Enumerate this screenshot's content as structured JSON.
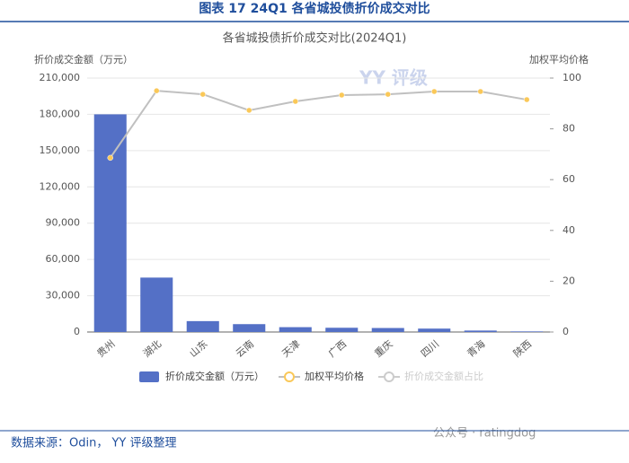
{
  "header": {
    "title": "图表 17 24Q1 各省城投债折价成交对比"
  },
  "chart_data": {
    "type": "bar_line",
    "title": "各省城投债折价成交对比(2024Q1)",
    "y_label": "折价成交金额（万元）",
    "y2_label": "加权平均价格",
    "categories": [
      "贵州",
      "湖北",
      "山东",
      "云南",
      "天津",
      "广西",
      "重庆",
      "四川",
      "青海",
      "陕西"
    ],
    "series": [
      {
        "name": "折价成交金额（万元）",
        "type": "bar",
        "color": "#5470c6",
        "values": [
          180000,
          45000,
          9000,
          6500,
          4000,
          3500,
          3300,
          2800,
          1200,
          500
        ]
      },
      {
        "name": "加权平均价格",
        "type": "line",
        "axis": "y2",
        "color": "#c0c0c0",
        "marker_color": "#fac858",
        "values": [
          68.6,
          95,
          93.6,
          87.3,
          90.8,
          93.3,
          93.6,
          94.7,
          94.7,
          91.5
        ]
      },
      {
        "name": "折价成交金额占比",
        "type": "line",
        "axis": "y2",
        "color": "#cccccc",
        "hidden": true,
        "values": [
          null,
          null,
          null,
          null,
          null,
          null,
          null,
          null,
          null,
          null
        ]
      }
    ],
    "ylim": [
      0,
      210000
    ],
    "yticks": [
      0,
      {
        "value": 30000,
        "label": "30,000"
      },
      {
        "value": 60000,
        "label": "60,000"
      },
      {
        "value": 90000,
        "label": "90,000"
      },
      {
        "value": 120000,
        "label": "120,000"
      },
      {
        "value": 150000,
        "label": "150,000"
      },
      {
        "value": 180000,
        "label": "180,000"
      },
      {
        "value": 210000,
        "label": "210,000"
      }
    ],
    "y2lim": [
      0,
      100
    ],
    "y2ticks": [
      0,
      20,
      40,
      60,
      80,
      100
    ],
    "grid": true
  },
  "footer": {
    "source": "数据来源：Odin， YY 评级整理",
    "watermark": "公众号 · ratingdog",
    "logo": "YY 评级"
  }
}
